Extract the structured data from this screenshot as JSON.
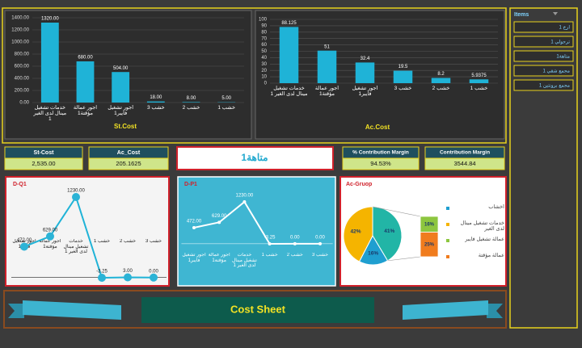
{
  "slicer": {
    "title": "Items",
    "items": [
      "ارخ 1",
      "ترجولي 1",
      "متاهة1",
      "مجمع شقي 1",
      "مجمع برونتين 1"
    ]
  },
  "selection": "متاهة1",
  "kpis": [
    {
      "label": "St-Cost",
      "value": "2,535.00"
    },
    {
      "label": "Ac_Cost",
      "value": "205.1625"
    },
    {
      "label": "% Contribution Margin",
      "value": "94.53%"
    },
    {
      "label": "Contribution Margin",
      "value": "3544.84"
    }
  ],
  "banner": {
    "title": "Cost Sheet"
  },
  "chart_data": [
    {
      "type": "bar",
      "title": "St.Cost",
      "categories": [
        "خدمات تشغيل مينال لدى الغير 1",
        "اجور عمالة مؤقتة1",
        "أجور تشغيل فايبر1",
        "خشب 3",
        "خشب 2",
        "خشب 1"
      ],
      "values": [
        1320,
        680,
        504,
        18,
        8,
        5
      ],
      "value_labels": [
        "1320.00",
        "680.00",
        "504.00",
        "18.00",
        "8.00",
        "5.00"
      ],
      "color": "#1fb3d7",
      "ylim": [
        0,
        1400
      ],
      "yticks": [
        {
          "value": 0,
          "label": "0.00"
        },
        {
          "value": 200,
          "label": "200.00"
        },
        {
          "value": 400,
          "label": "400.00"
        },
        {
          "value": 600,
          "label": "600.00"
        },
        {
          "value": 800,
          "label": "800.00"
        },
        {
          "value": 1000,
          "label": "1000.00"
        },
        {
          "value": 1200,
          "label": "1200.00"
        },
        {
          "value": 1400,
          "label": "1400.00"
        }
      ],
      "grid": true
    },
    {
      "type": "bar",
      "title": "Ac.Cost",
      "categories": [
        "خدمات تشغيل مينال لدى الغير 1",
        "أجور عمالة مؤقتة1",
        "أجور تشغيل فايبر1",
        "خشب 3",
        "خشب 2",
        "خشب 1"
      ],
      "values": [
        88.125,
        51,
        32.4,
        19.5,
        8.2,
        5.9375
      ],
      "color": "#1fb3d7",
      "ylim": [
        0,
        100
      ],
      "yticks": [
        0,
        10,
        20,
        30,
        40,
        50,
        60,
        70,
        80,
        90,
        100
      ],
      "grid": true
    },
    {
      "type": "line",
      "title": "D-Q1",
      "categories": [
        "أجور تشغيل فايبر1",
        "أجور عمالة مؤقتة1",
        "خدمات تشغيل مينال لدى الغير 1",
        "خشب 1",
        "خشب 2",
        "خشب 3"
      ],
      "values": [
        472,
        629,
        1230,
        -3.25,
        3,
        0
      ],
      "value_labels": [
        "472.00",
        "629.00",
        "1230.00",
        "-3.25",
        "3.00",
        "0.00"
      ],
      "color": "#1fb3d7"
    },
    {
      "type": "line",
      "title": "D-P1",
      "categories": [
        "أجور تشغيل فايبر1",
        "أجور عمالة مؤقتة1",
        "خدمات تشغيل مينال لدى الغير 1",
        "خشب 1",
        "خشب 2",
        "خشب 3"
      ],
      "values": [
        472,
        629,
        1230,
        -3.25,
        0,
        0
      ],
      "value_labels": [
        "472.00",
        "629.00",
        "1230.00",
        "-3.25",
        "0.00",
        "0.00"
      ],
      "color": "#ffffff"
    },
    {
      "type": "pie",
      "title": "Ac-Gruop",
      "categories": [
        "أخشاب",
        "خدمات تشغيل مينال لدى الغير",
        "عمالة تشغيل فايبر",
        "عمالة مؤقتة"
      ],
      "values": [
        16,
        42,
        16,
        25
      ],
      "value_labels": [
        "16%",
        "42%",
        "16%",
        "25%"
      ],
      "colors": [
        "#1f9fd0",
        "#f5b400",
        "#8dc63f",
        "#f07c1e"
      ],
      "secondary_count": 2,
      "other_value": 41,
      "other_label": "41%",
      "other_color": "#22b5a6"
    }
  ]
}
